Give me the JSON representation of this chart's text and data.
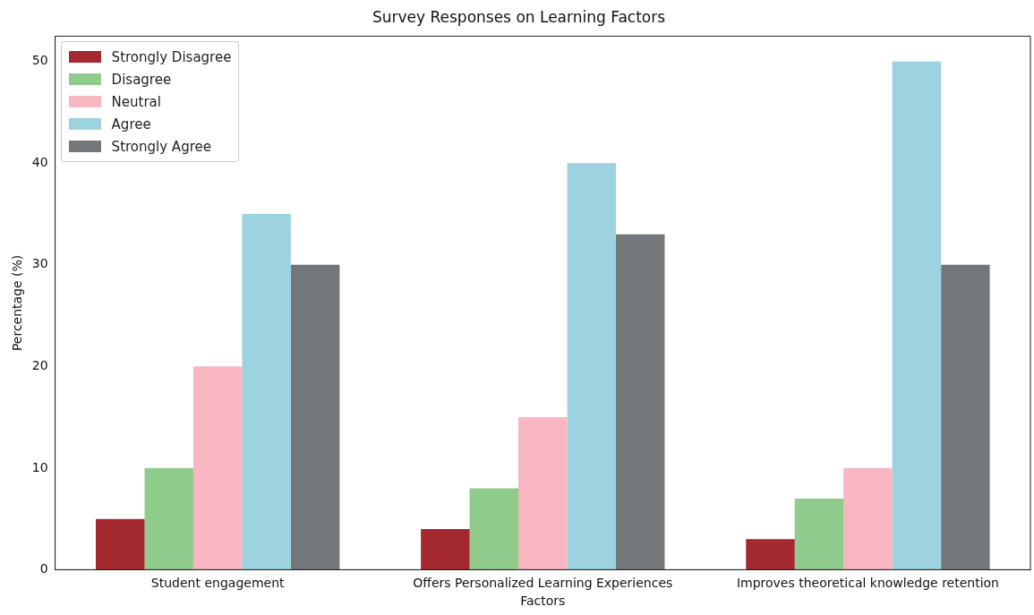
{
  "chart_data": {
    "type": "bar",
    "title": "Survey Responses on Learning Factors",
    "xlabel": "Factors",
    "ylabel": "Percentage (%)",
    "categories": [
      "Student engagement",
      "Offers Personalized Learning Experiences",
      "Improves theoretical knowledge retention"
    ],
    "series": [
      {
        "name": "Strongly Disagree",
        "color": "#a4282f",
        "values": [
          5,
          4,
          3
        ]
      },
      {
        "name": "Disagree",
        "color": "#8fcb8a",
        "values": [
          10,
          8,
          7
        ]
      },
      {
        "name": "Neutral",
        "color": "#f7b6c0",
        "values": [
          20,
          15,
          10
        ]
      },
      {
        "name": "Agree",
        "color": "#9dd3e0",
        "values": [
          35,
          40,
          50
        ]
      },
      {
        "name": "Strongly Agree",
        "color": "#747779",
        "values": [
          30,
          33,
          30
        ]
      }
    ],
    "ylim": [
      0,
      52.5
    ],
    "yticks": [
      0,
      10,
      20,
      30,
      40,
      50
    ],
    "grid": false,
    "legend": "top left"
  }
}
